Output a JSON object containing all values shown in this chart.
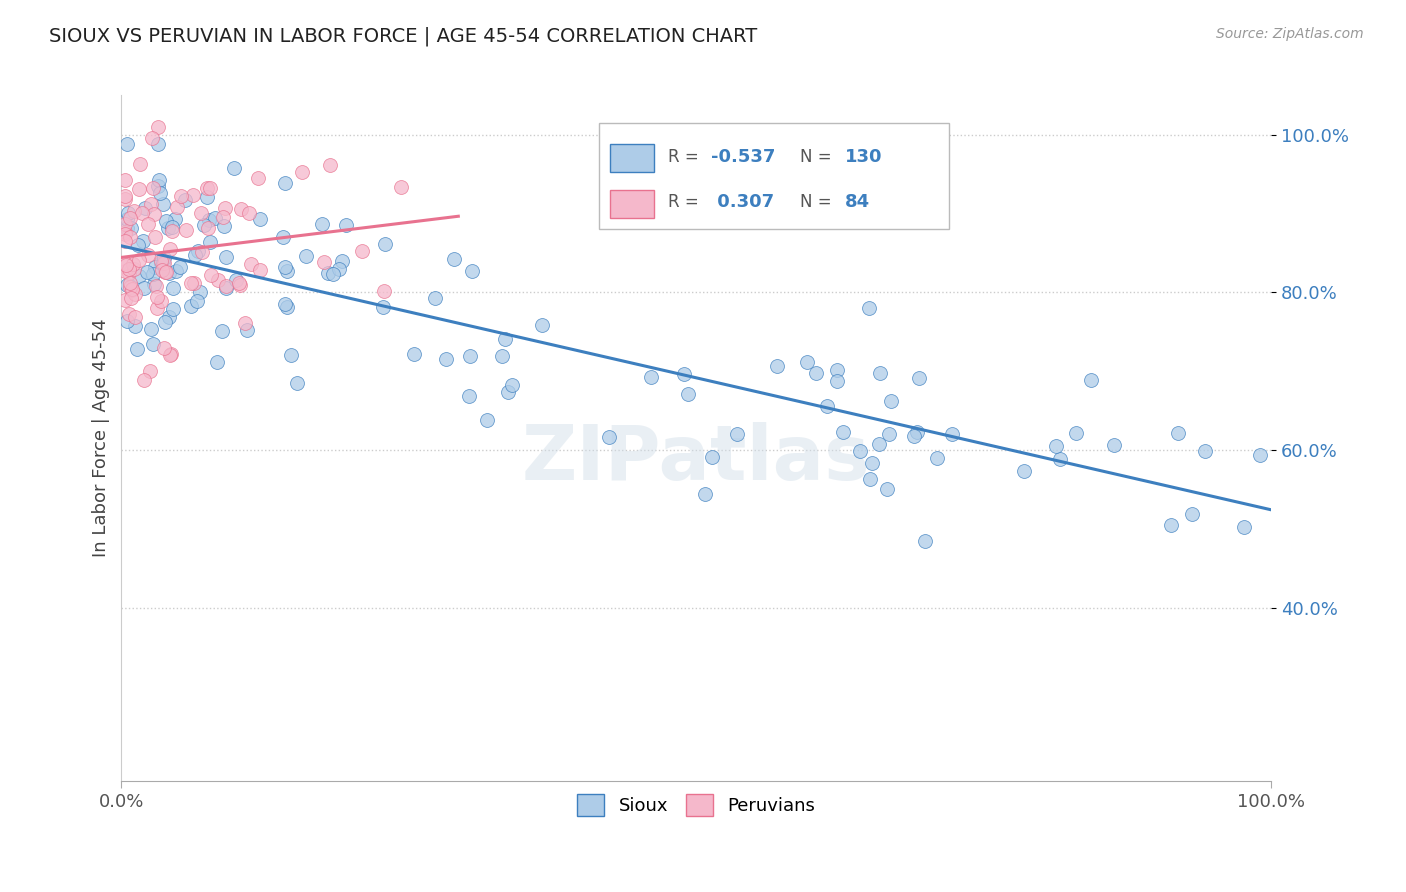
{
  "title": "SIOUX VS PERUVIAN IN LABOR FORCE | AGE 45-54 CORRELATION CHART",
  "source_text": "Source: ZipAtlas.com",
  "ylabel": "In Labor Force | Age 45-54",
  "xlim": [
    0.0,
    1.0
  ],
  "ylim": [
    0.18,
    1.05
  ],
  "ytick_labels": [
    "40.0%",
    "60.0%",
    "80.0%",
    "100.0%"
  ],
  "ytick_positions": [
    0.4,
    0.6,
    0.8,
    1.0
  ],
  "legend_sioux_label": "Sioux",
  "legend_peruvian_label": "Peruvians",
  "sioux_color": "#aecce8",
  "peruvian_color": "#f5b8cb",
  "sioux_line_color": "#3d7fbf",
  "peruvian_line_color": "#e8728f",
  "sioux_R": -0.537,
  "sioux_N": 130,
  "peruvian_R": 0.307,
  "peruvian_N": 84,
  "watermark": "ZIPatlas",
  "background_color": "#ffffff",
  "grid_color": "#cccccc",
  "legend_R_color": "#3d7fbf",
  "legend_text_color": "#555555"
}
